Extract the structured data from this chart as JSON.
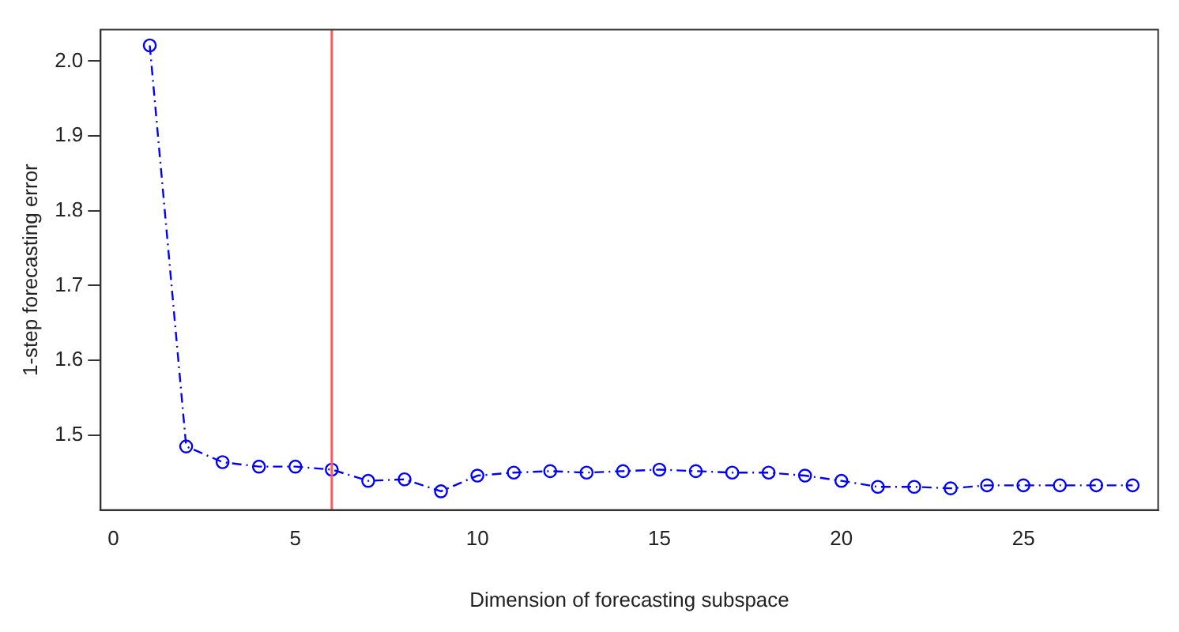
{
  "chart_data": {
    "type": "line",
    "xlabel": "Dimension of forecasting subspace",
    "ylabel": "1-step forecasting error",
    "x": [
      1,
      2,
      3,
      4,
      5,
      6,
      7,
      8,
      9,
      10,
      11,
      12,
      13,
      14,
      15,
      16,
      17,
      18,
      19,
      20,
      21,
      22,
      23,
      24,
      25,
      26,
      27,
      28
    ],
    "series": [
      {
        "color": "#0000ff",
        "values": [
          2.021,
          1.485,
          1.464,
          1.458,
          1.458,
          1.454,
          1.439,
          1.441,
          1.425,
          1.446,
          1.45,
          1.452,
          1.45,
          1.452,
          1.454,
          1.452,
          1.45,
          1.45,
          1.446,
          1.439,
          1.431,
          1.431,
          1.429,
          1.433,
          1.433,
          1.433,
          1.433,
          1.433
        ]
      }
    ],
    "xlim": [
      -0.35,
      28.7
    ],
    "xticks": [
      0,
      5,
      10,
      15,
      20,
      25
    ],
    "ylim": [
      1.4,
      2.042
    ],
    "yticks": [
      1.5,
      1.6,
      1.7,
      1.8,
      1.9,
      {
        "value": 2,
        "label": "2.0"
      }
    ],
    "ref_lines": [
      {
        "axis": "x",
        "value": 6,
        "color": "#ff5a5a"
      }
    ],
    "marker": "circle",
    "line_style": "dashed",
    "grid": false,
    "legend": false
  }
}
